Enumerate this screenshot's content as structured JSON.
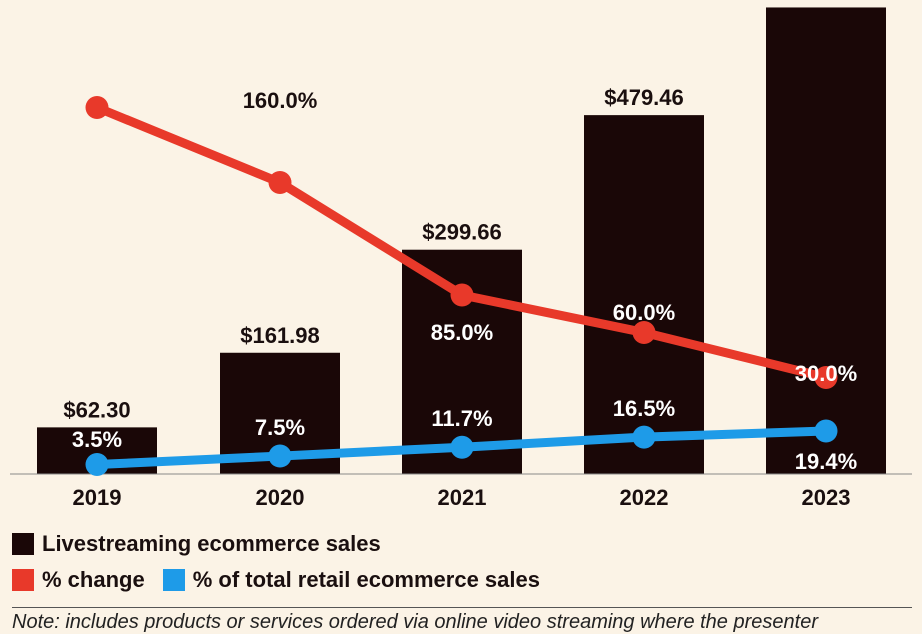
{
  "chart_data": {
    "type": "bar",
    "categories": [
      "2019",
      "2020",
      "2021",
      "2022",
      "2023"
    ],
    "series": [
      {
        "name": "Livestreaming ecommerce sales",
        "type": "bar",
        "values": [
          62.3,
          161.98,
          299.66,
          479.46,
          623.3
        ],
        "labels": [
          "$62.30",
          "$161.98",
          "$299.66",
          "$479.46",
          ""
        ],
        "color": "#1a0707"
      },
      {
        "name": "% change",
        "type": "line",
        "values": [
          210.0,
          160.0,
          85.0,
          60.0,
          30.0
        ],
        "labels": [
          "",
          "160.0%",
          "85.0%",
          "60.0%",
          "30.0%"
        ],
        "color": "#e8392a"
      },
      {
        "name": "% of total retail ecommerce sales",
        "type": "line",
        "values": [
          3.5,
          7.5,
          11.7,
          16.5,
          19.4
        ],
        "labels": [
          "3.5%",
          "7.5%",
          "11.7%",
          "16.5%",
          "19.4%"
        ],
        "color": "#1e9be8"
      }
    ],
    "legend": [
      {
        "label": "Livestreaming ecommerce sales",
        "color": "#1a0707"
      },
      {
        "label": "% change",
        "color": "#e8392a"
      },
      {
        "label": "% of total retail ecommerce sales",
        "color": "#1e9be8"
      }
    ],
    "legend_position": "bottom",
    "grid": false
  },
  "note": "Note: includes products or services ordered via online video streaming where the presenter"
}
